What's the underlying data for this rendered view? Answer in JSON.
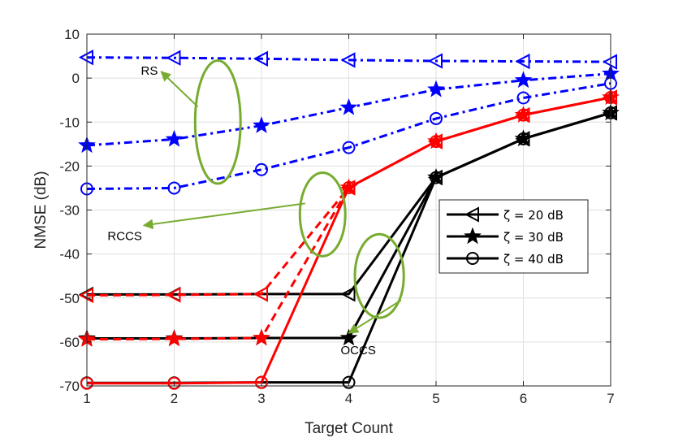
{
  "chart_data": {
    "type": "line",
    "title": "",
    "xlabel": "Target Count",
    "ylabel": "NMSE (dB)",
    "xlim": [
      1,
      7
    ],
    "ylim": [
      -70,
      10
    ],
    "xticks": [
      1,
      2,
      3,
      4,
      5,
      6,
      7
    ],
    "yticks": [
      10,
      0,
      -10,
      -20,
      -30,
      -40,
      -50,
      -60,
      -70
    ],
    "grid": true,
    "x": [
      1,
      2,
      3,
      4,
      5,
      6,
      7
    ],
    "series": [
      {
        "name": "RS, ζ = 20 dB",
        "group": "RS",
        "color": "#0000ff",
        "dash": "dashdot",
        "marker": "triangle-left",
        "values": [
          4.7,
          4.6,
          4.4,
          4.1,
          3.9,
          3.8,
          3.7
        ]
      },
      {
        "name": "RS, ζ = 30 dB",
        "group": "RS",
        "color": "#0000ff",
        "dash": "dashdot",
        "marker": "star",
        "values": [
          -15.3,
          -13.9,
          -10.8,
          -6.7,
          -2.6,
          -0.5,
          1.0
        ]
      },
      {
        "name": "RS, ζ = 40 dB",
        "group": "RS",
        "color": "#0000ff",
        "dash": "dashdot",
        "marker": "circle",
        "values": [
          -25.2,
          -25.0,
          -20.8,
          -15.8,
          -9.2,
          -4.5,
          -1.2
        ]
      },
      {
        "name": "RCCS, ζ = 20 dB",
        "group": "RCCS",
        "color": "#ff0000",
        "dash": "dashed",
        "marker": "triangle-left",
        "values": [
          -49.4,
          -49.3,
          -49.1,
          -24.9,
          -14.4,
          -8.4,
          -4.4
        ]
      },
      {
        "name": "RCCS, ζ = 30 dB",
        "group": "RCCS",
        "color": "#ff0000",
        "dash": "dashed",
        "marker": "star",
        "values": [
          -59.4,
          -59.3,
          -59.1,
          -24.9,
          -14.4,
          -8.4,
          -4.4
        ]
      },
      {
        "name": "RCCS, ζ = 40 dB",
        "group": "RCCS",
        "color": "#ff0000",
        "dash": "solid",
        "marker": "circle",
        "values": [
          -69.4,
          -69.4,
          -69.2,
          -24.9,
          -14.4,
          -8.4,
          -4.4
        ]
      },
      {
        "name": "OCCS, ζ = 20 dB",
        "group": "OCCS",
        "color": "#000000",
        "dash": "solid",
        "marker": "triangle-left",
        "values": [
          -49.2,
          -49.2,
          -49.1,
          -49.1,
          -22.6,
          -13.8,
          -7.9
        ]
      },
      {
        "name": "OCCS, ζ = 30 dB",
        "group": "OCCS",
        "color": "#000000",
        "dash": "solid",
        "marker": "star",
        "values": [
          -59.2,
          -59.2,
          -59.1,
          -59.1,
          -22.6,
          -13.8,
          -7.9
        ]
      },
      {
        "name": "OCCS, ζ = 40 dB",
        "group": "OCCS",
        "color": "#000000",
        "dash": "solid",
        "marker": "circle",
        "values": [
          -69.3,
          -69.3,
          -69.2,
          -69.2,
          -22.6,
          -13.8,
          -7.9
        ]
      }
    ],
    "legend": {
      "placement": "center-right",
      "entries": [
        {
          "label": "ζ = 20 dB",
          "marker": "triangle-left",
          "color": "#000000"
        },
        {
          "label": "ζ = 30 dB",
          "marker": "star",
          "color": "#000000"
        },
        {
          "label": "ζ = 40 dB",
          "marker": "circle",
          "color": "#000000"
        }
      ]
    },
    "annotations": [
      {
        "text": "RS",
        "color": "#77ac30",
        "ellipse_center": [
          2.5,
          -10
        ],
        "ellipse_rx": 0.26,
        "ellipse_ry": 14,
        "label_at": [
          1.85,
          1.5
        ],
        "arrow_to": [
          2.27,
          -6.5
        ]
      },
      {
        "text": "RCCS",
        "color": "#77ac30",
        "ellipse_center": [
          3.7,
          -31
        ],
        "ellipse_rx": 0.26,
        "ellipse_ry": 9.5,
        "label_at": [
          1.65,
          -33.5
        ],
        "arrow_to": [
          3.5,
          -28.5
        ]
      },
      {
        "text": "OCCS",
        "color": "#77ac30",
        "ellipse_center": [
          4.35,
          -45
        ],
        "ellipse_rx": 0.28,
        "ellipse_ry": 9.5,
        "label_at": [
          4.0,
          -58
        ],
        "arrow_to": [
          4.6,
          -50.5
        ]
      }
    ]
  }
}
